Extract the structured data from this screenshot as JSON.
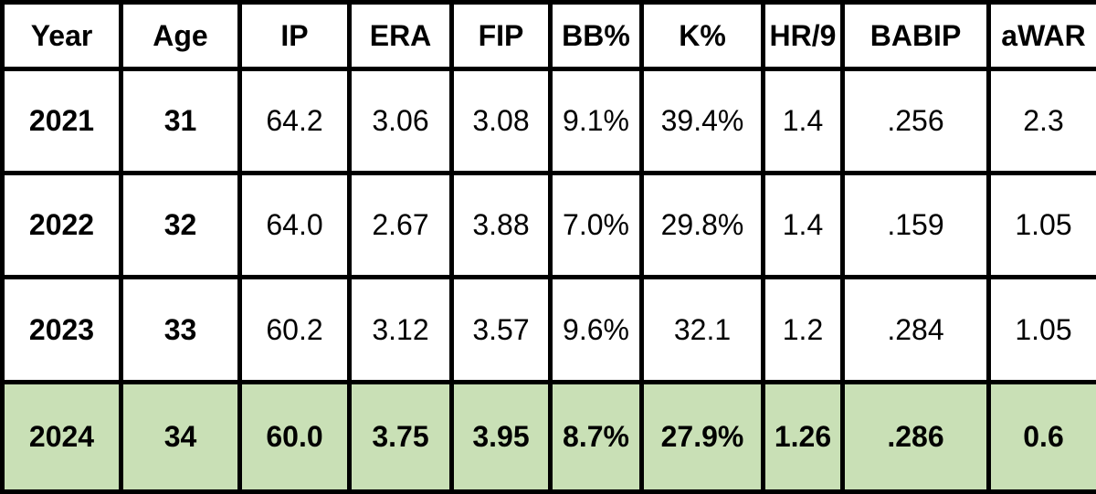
{
  "table": {
    "header": [
      "Year",
      "Age",
      "IP",
      "ERA",
      "FIP",
      "BB%",
      "K%",
      "HR/9",
      "BABIP",
      "aWAR"
    ],
    "rows": [
      [
        "2021",
        "31",
        "64.2",
        "3.06",
        "3.08",
        "9.1%",
        "39.4%",
        "1.4",
        ".256",
        "2.3"
      ],
      [
        "2022",
        "32",
        "64.0",
        "2.67",
        "3.88",
        "7.0%",
        "29.8%",
        "1.4",
        ".159",
        "1.05"
      ],
      [
        "2023",
        "33",
        "60.2",
        "3.12",
        "3.57",
        "9.6%",
        "32.1",
        "1.2",
        ".284",
        "1.05"
      ],
      [
        "2024",
        "34",
        "60.0",
        "3.75",
        "3.95",
        "8.7%",
        "27.9%",
        "1.26",
        ".286",
        "0.6"
      ]
    ]
  }
}
